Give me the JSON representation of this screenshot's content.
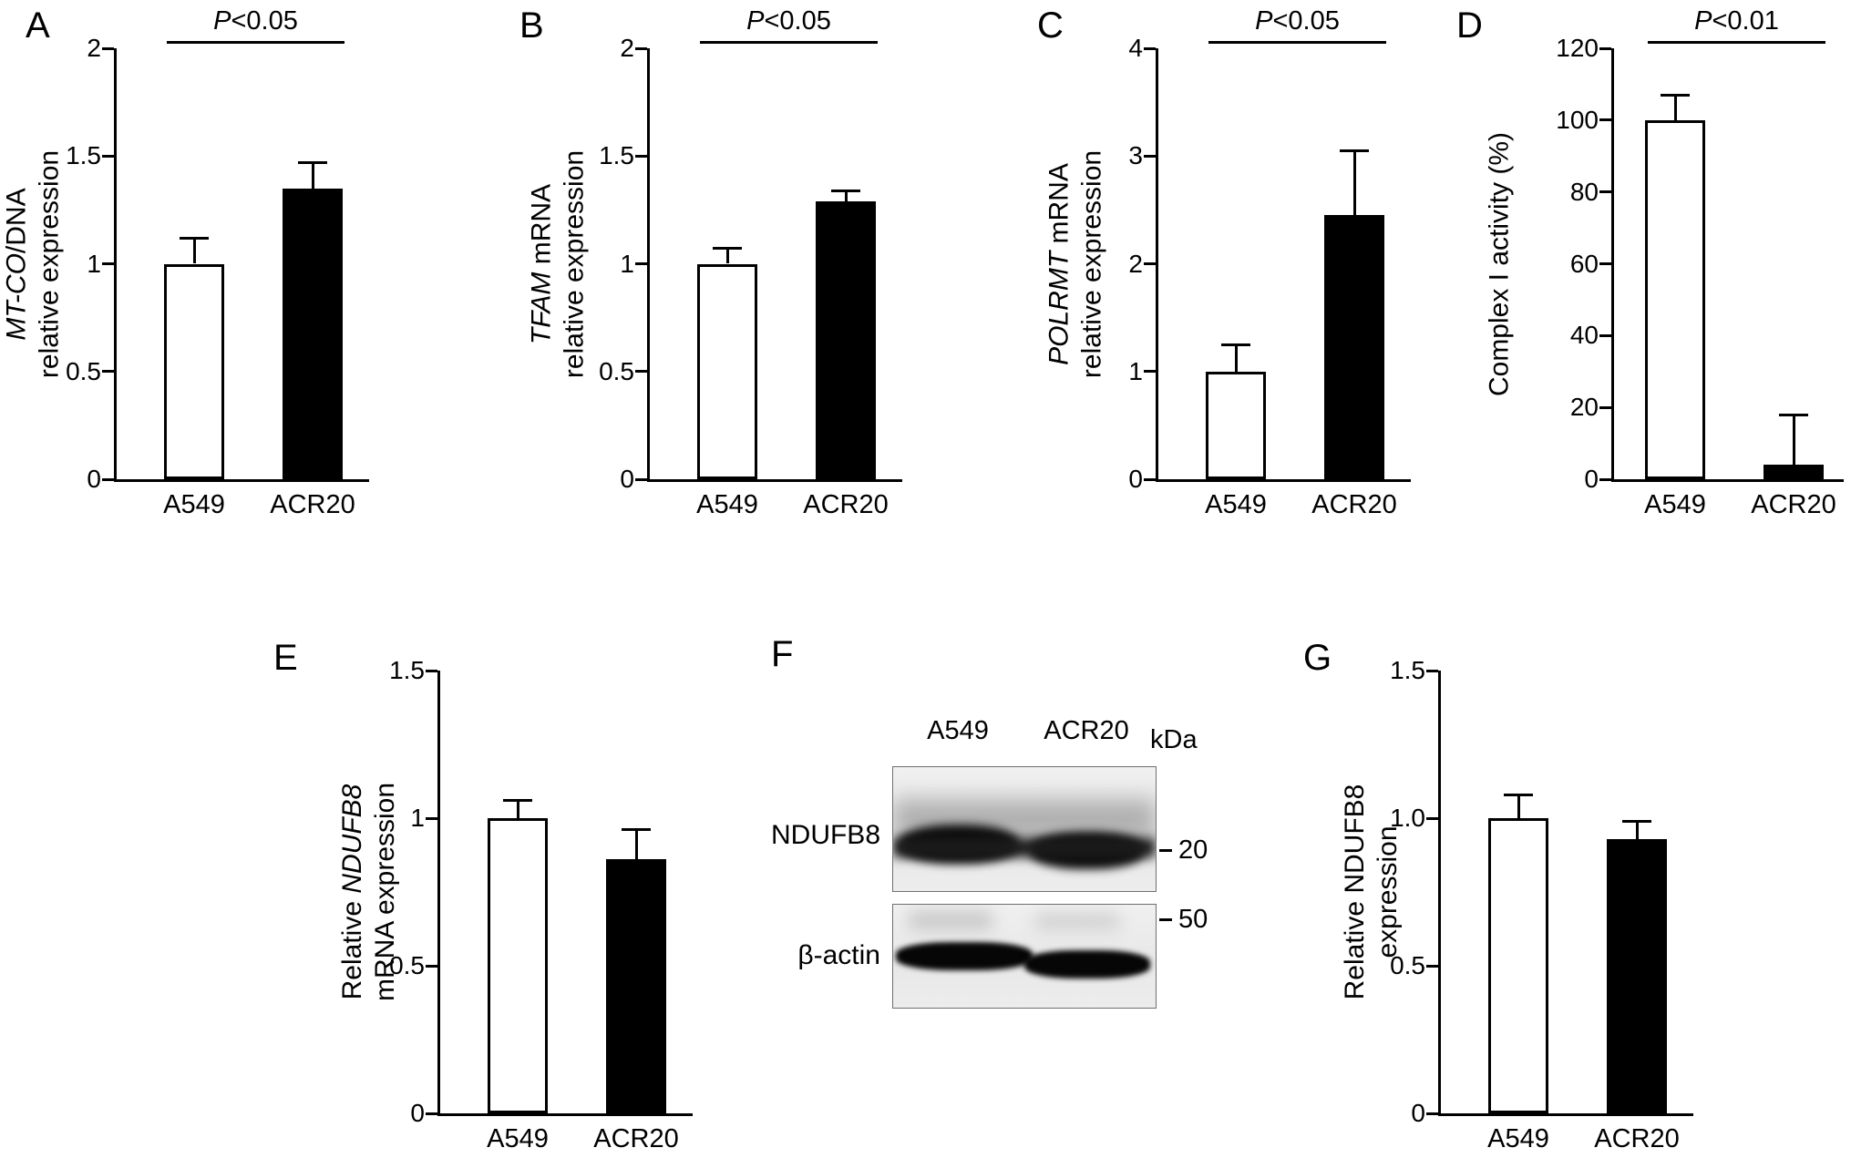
{
  "figure": {
    "description": "Seven-panel scientific figure: bar charts A-E and G, western blot F",
    "background_color": "#ffffff",
    "axis_color": "#000000",
    "panels_order": [
      "A",
      "B",
      "C",
      "D",
      "E",
      "F",
      "G"
    ]
  },
  "chart_data": [
    {
      "panel": "A",
      "type": "bar",
      "categories": [
        "A549",
        "ACR20"
      ],
      "values": [
        1.0,
        1.35
      ],
      "errors": [
        0.12,
        0.12
      ],
      "bar_fills": [
        "#ffffff",
        "#000000"
      ],
      "ylim": [
        0,
        2
      ],
      "yticks": [
        2,
        1.5,
        1,
        0.5,
        0
      ],
      "ytick_labels": [
        "2",
        "1.5",
        "1",
        "0.5",
        "0"
      ],
      "ylabel_lines": [
        [
          {
            "t": "MT-CO",
            "i": true
          },
          {
            "t": "/DNA",
            "i": false
          }
        ],
        [
          {
            "t": "relative expression",
            "i": false
          }
        ]
      ],
      "significance": "P<0.05"
    },
    {
      "panel": "B",
      "type": "bar",
      "categories": [
        "A549",
        "ACR20"
      ],
      "values": [
        1.0,
        1.29
      ],
      "errors": [
        0.07,
        0.05
      ],
      "bar_fills": [
        "#ffffff",
        "#000000"
      ],
      "ylim": [
        0,
        2
      ],
      "yticks": [
        2,
        1.5,
        1,
        0.5,
        0
      ],
      "ytick_labels": [
        "2",
        "1.5",
        "1",
        "0.5",
        "0"
      ],
      "ylabel_lines": [
        [
          {
            "t": "TFAM",
            "i": true
          },
          {
            "t": " mRNA",
            "i": false
          }
        ],
        [
          {
            "t": "relative expression",
            "i": false
          }
        ]
      ],
      "significance": "P<0.05"
    },
    {
      "panel": "C",
      "type": "bar",
      "categories": [
        "A549",
        "ACR20"
      ],
      "values": [
        1.0,
        2.45
      ],
      "errors": [
        0.25,
        0.6
      ],
      "bar_fills": [
        "#ffffff",
        "#000000"
      ],
      "ylim": [
        0,
        4
      ],
      "yticks": [
        4,
        3,
        2,
        1,
        0
      ],
      "ytick_labels": [
        "4",
        "3",
        "2",
        "1",
        "0"
      ],
      "ylabel_lines": [
        [
          {
            "t": "POLRMT",
            "i": true
          },
          {
            "t": " mRNA",
            "i": false
          }
        ],
        [
          {
            "t": "relative expression",
            "i": false
          }
        ]
      ],
      "significance": "P<0.05"
    },
    {
      "panel": "D",
      "type": "bar",
      "categories": [
        "A549",
        "ACR20"
      ],
      "values": [
        100,
        4
      ],
      "errors": [
        7,
        14
      ],
      "bar_fills": [
        "#ffffff",
        "#000000"
      ],
      "ylim": [
        0,
        120
      ],
      "yticks": [
        120,
        100,
        80,
        60,
        40,
        20,
        0
      ],
      "ytick_labels": [
        "120",
        "100",
        "80",
        "60",
        "40",
        "20",
        "0"
      ],
      "ylabel_lines": [
        [
          {
            "t": "Complex I activity (%)",
            "i": false
          }
        ]
      ],
      "significance": "P<0.01"
    },
    {
      "panel": "E",
      "type": "bar",
      "categories": [
        "A549",
        "ACR20"
      ],
      "values": [
        1.0,
        0.86
      ],
      "errors": [
        0.06,
        0.1
      ],
      "bar_fills": [
        "#ffffff",
        "#000000"
      ],
      "ylim": [
        0,
        1.5
      ],
      "yticks": [
        1.5,
        1,
        0.5,
        0
      ],
      "ytick_labels": [
        "1.5",
        "1",
        "0.5",
        "0"
      ],
      "ylabel_lines": [
        [
          {
            "t": "Relative ",
            "i": false
          },
          {
            "t": "NDUFB8",
            "i": true
          }
        ],
        [
          {
            "t": "mRNA expression",
            "i": false
          }
        ]
      ],
      "significance": null
    },
    {
      "panel": "F",
      "type": "blot",
      "lane_labels": [
        "A549",
        "ACR20"
      ],
      "unit_label": "kDa",
      "bands": [
        {
          "protein": "NDUFB8",
          "marker": "20"
        },
        {
          "protein": "β-actin",
          "marker": "50"
        }
      ]
    },
    {
      "panel": "G",
      "type": "bar",
      "categories": [
        "A549",
        "ACR20"
      ],
      "values": [
        1.0,
        0.93
      ],
      "errors": [
        0.08,
        0.06
      ],
      "bar_fills": [
        "#ffffff",
        "#000000"
      ],
      "ylim": [
        0,
        1.5
      ],
      "yticks": [
        1.5,
        1,
        0.5,
        0
      ],
      "ytick_labels": [
        "1.5",
        "1.0",
        "0.5",
        "0"
      ],
      "ylabel_lines": [
        [
          {
            "t": "Relative NDUFB8",
            "i": false
          }
        ],
        [
          {
            "t": "expression",
            "i": false
          }
        ]
      ],
      "significance": null
    }
  ]
}
